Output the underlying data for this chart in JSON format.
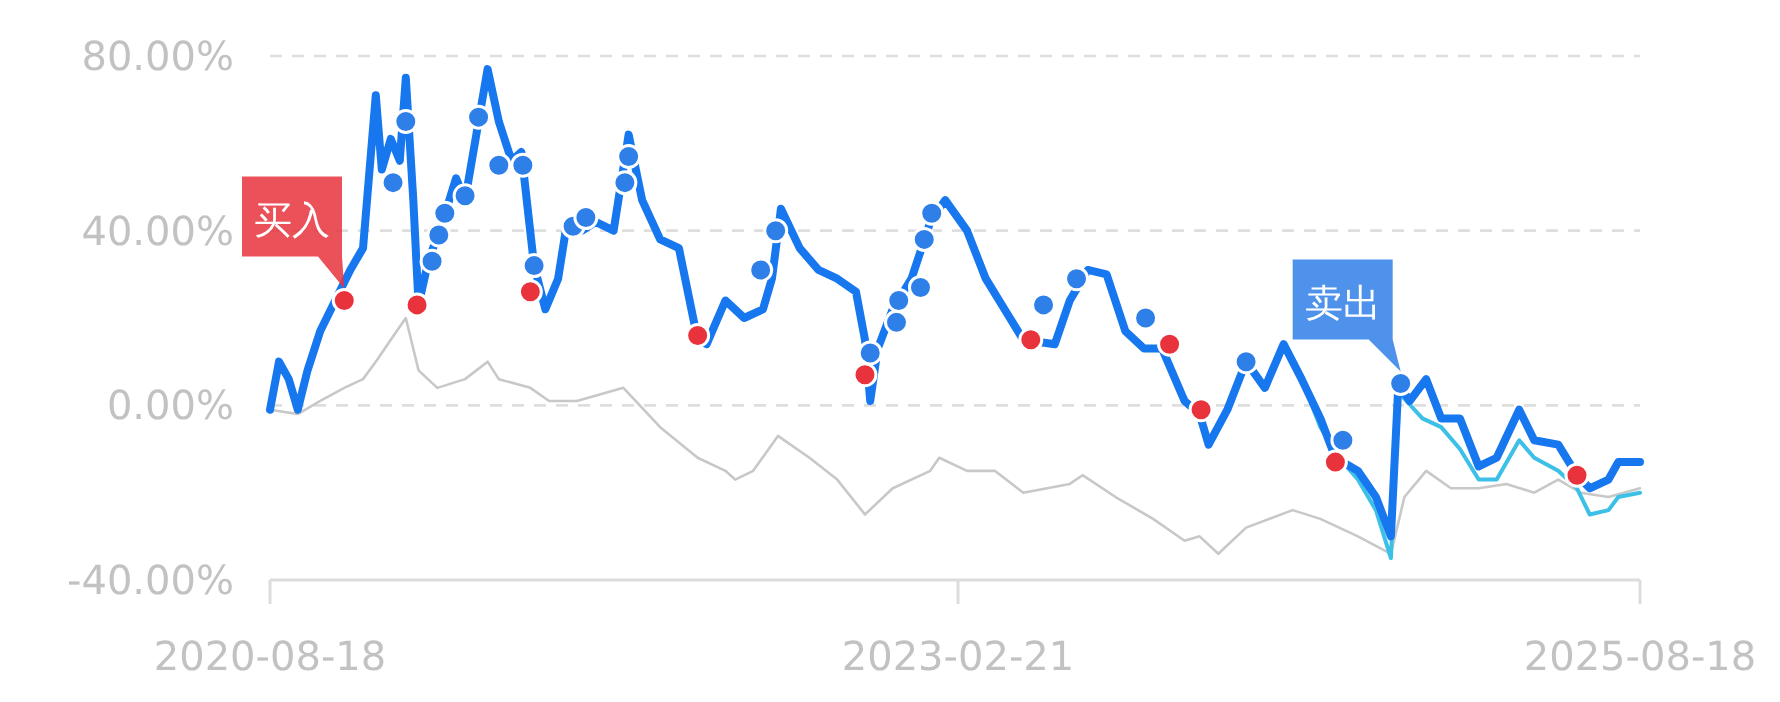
{
  "chart_data": {
    "type": "line",
    "xlim": [
      "2020-08-18",
      "2025-08-18"
    ],
    "xticks": [
      "2020-08-18",
      "2023-02-21",
      "2025-08-18"
    ],
    "ylim": [
      -40,
      80
    ],
    "yticks": [
      {
        "value": -40,
        "label": "-40.00%"
      },
      {
        "value": 0,
        "label": "0.00%"
      },
      {
        "value": 40,
        "label": "40.00%"
      },
      {
        "value": 80,
        "label": "80.00%"
      }
    ],
    "grid": "y",
    "series": [
      {
        "type": "line",
        "color": "#1677ee",
        "x": [
          "2020-08-18",
          "2020-08-30",
          "2020-09-12",
          "2020-09-24",
          "2020-10-07",
          "2020-10-24",
          "2020-11-13",
          "2020-12-03",
          "2020-12-20",
          "2021-01-06",
          "2021-01-14",
          "2021-01-26",
          "2021-02-07",
          "2021-02-15",
          "2021-02-25",
          "2021-03-04",
          "2021-03-17",
          "2021-04-05",
          "2021-04-23",
          "2021-05-05",
          "2021-05-18",
          "2021-06-04",
          "2021-06-19",
          "2021-07-06",
          "2021-07-19",
          "2021-08-05",
          "2021-08-20",
          "2021-09-06",
          "2021-09-18",
          "2021-10-08",
          "2021-10-26",
          "2021-11-19",
          "2021-12-09",
          "2021-12-27",
          "2022-01-20",
          "2022-02-14",
          "2022-03-11",
          "2022-03-23",
          "2022-04-17",
          "2022-05-12",
          "2022-06-06",
          "2022-06-18",
          "2022-06-30",
          "2022-07-25",
          "2022-08-19",
          "2022-09-13",
          "2022-10-08",
          "2022-10-20",
          "2022-10-27",
          "2022-11-06",
          "2022-11-26",
          "2022-12-21",
          "2023-01-15",
          "2023-02-04",
          "2023-03-05",
          "2023-03-30",
          "2023-04-24",
          "2023-05-19",
          "2023-06-30",
          "2023-07-20",
          "2023-08-13",
          "2023-09-07",
          "2023-10-02",
          "2023-10-27",
          "2023-11-20",
          "2023-12-20",
          "2024-01-09",
          "2024-01-21",
          "2024-02-15",
          "2024-03-11",
          "2024-04-05",
          "2024-04-30",
          "2024-05-24",
          "2024-06-18",
          "2024-07-08",
          "2024-08-07",
          "2024-08-31",
          "2024-09-20",
          "2024-09-30",
          "2024-10-15",
          "2024-11-06",
          "2024-11-26",
          "2024-12-21",
          "2025-01-15",
          "2025-02-08",
          "2025-03-10",
          "2025-03-30",
          "2025-05-01",
          "2025-05-26",
          "2025-06-12",
          "2025-07-07",
          "2025-07-20",
          "2025-08-18"
        ],
        "values": [
          -1,
          10,
          6,
          -1,
          8,
          17,
          24,
          31,
          36,
          71,
          54,
          61,
          56,
          75,
          47,
          23,
          33,
          42,
          52,
          47,
          60,
          77,
          65,
          56,
          58,
          32,
          22,
          29,
          42,
          40,
          42,
          40,
          62,
          47,
          38,
          36,
          15,
          14,
          24,
          20,
          22,
          29,
          45,
          36,
          31,
          29,
          26,
          15,
          1,
          13,
          22,
          29,
          42,
          47,
          40,
          29,
          22,
          15,
          14,
          24,
          31,
          30,
          17,
          13,
          13,
          1,
          -2,
          -9,
          -1,
          10,
          4,
          14,
          6,
          -3,
          -12,
          -15,
          -21,
          -30,
          5,
          1,
          6,
          -3,
          -3,
          -14,
          -12,
          -1,
          -8,
          -9,
          -16,
          -19,
          -17,
          -13,
          -13
        ]
      },
      {
        "color": "#3cc0e8",
        "x": [
          "2024-05-24",
          "2024-06-18",
          "2024-07-13",
          "2024-08-07",
          "2024-08-31",
          "2024-09-20",
          "2024-09-30",
          "2024-11-01",
          "2024-11-26",
          "2024-12-21",
          "2025-01-15",
          "2025-02-08",
          "2025-03-10",
          "2025-03-30",
          "2025-05-01",
          "2025-05-26",
          "2025-06-12",
          "2025-07-07",
          "2025-07-20",
          "2025-08-18"
        ],
        "values": [
          6,
          -5,
          -12,
          -17,
          -24,
          -35,
          3,
          -3,
          -5,
          -10,
          -17,
          -17,
          -8,
          -12,
          -15,
          -19,
          -25,
          -24,
          -21,
          -20
        ]
      },
      {
        "color": "#c8c8c8",
        "x": [
          "2020-08-18",
          "2020-09-24",
          "2020-10-24",
          "2020-11-25",
          "2020-12-20",
          "2021-01-06",
          "2021-01-26",
          "2021-02-15",
          "2021-03-04",
          "2021-03-29",
          "2021-05-05",
          "2021-06-04",
          "2021-06-19",
          "2021-07-31",
          "2021-08-25",
          "2021-10-01",
          "2021-12-02",
          "2022-01-20",
          "2022-03-11",
          "2022-04-17",
          "2022-04-30",
          "2022-05-24",
          "2022-06-26",
          "2022-08-07",
          "2022-09-13",
          "2022-10-20",
          "2022-11-26",
          "2023-01-15",
          "2023-01-27",
          "2023-03-05",
          "2023-04-11",
          "2023-05-19",
          "2023-07-20",
          "2023-08-06",
          "2023-09-19",
          "2023-11-08",
          "2023-12-20",
          "2024-01-09",
          "2024-02-03",
          "2024-03-11",
          "2024-05-12",
          "2024-06-18",
          "2024-08-07",
          "2024-09-20",
          "2024-10-08",
          "2024-11-06",
          "2024-12-09",
          "2025-01-15",
          "2025-02-21",
          "2025-03-30",
          "2025-05-01",
          "2025-05-31",
          "2025-07-07",
          "2025-08-18"
        ],
        "values": [
          -1,
          -2,
          1,
          4,
          6,
          10,
          15,
          20,
          8,
          4,
          6,
          10,
          6,
          4,
          1,
          1,
          4,
          -5,
          -12,
          -15,
          -17,
          -15,
          -7,
          -12,
          -17,
          -25,
          -19,
          -15,
          -12,
          -15,
          -15,
          -20,
          -18,
          -16,
          -21,
          -26,
          -31,
          -30,
          -34,
          -28,
          -24,
          -26,
          -30,
          -34,
          -21,
          -15,
          -19,
          -19,
          -18,
          -20,
          -17,
          -20,
          -21,
          -19
        ]
      },
      {
        "type": "scatter",
        "color": "#e8323c",
        "marker": "circle",
        "x": [
          "2020-11-25",
          "2021-03-02",
          "2021-07-31",
          "2022-03-11",
          "2022-10-20",
          "2023-05-29",
          "2023-11-30",
          "2024-01-11",
          "2024-07-08",
          "2025-05-26"
        ],
        "values": [
          24,
          23,
          26,
          16,
          7,
          15,
          14,
          -1,
          -13,
          -16
        ]
      },
      {
        "type": "scatter",
        "color": "#2f7fe8",
        "marker": "circle",
        "x": [
          "2021-01-29",
          "2021-02-15",
          "2021-03-22",
          "2021-03-31",
          "2021-04-08",
          "2021-05-05",
          "2021-05-23",
          "2021-06-19",
          "2021-07-21",
          "2021-08-05",
          "2021-09-26",
          "2021-10-13",
          "2021-12-04",
          "2021-12-09",
          "2022-06-03",
          "2022-06-23",
          "2022-10-27",
          "2022-12-01",
          "2022-12-04",
          "2023-01-02",
          "2023-01-07",
          "2023-01-17",
          "2023-06-15",
          "2023-07-29",
          "2023-10-29",
          "2024-03-11",
          "2024-07-18",
          "2024-10-03"
        ],
        "values": [
          51,
          65,
          33,
          39,
          44,
          48,
          66,
          55,
          55,
          32,
          41,
          43,
          51,
          57,
          31,
          40,
          12,
          19,
          24,
          27,
          38,
          44,
          23,
          29,
          20,
          10,
          -8,
          5
        ]
      }
    ],
    "annotations": [
      {
        "text": "买入",
        "x": "2020-11-25",
        "y": 24
      },
      {
        "text": "卖出",
        "x": "2024-10-03",
        "y": 5
      }
    ]
  }
}
